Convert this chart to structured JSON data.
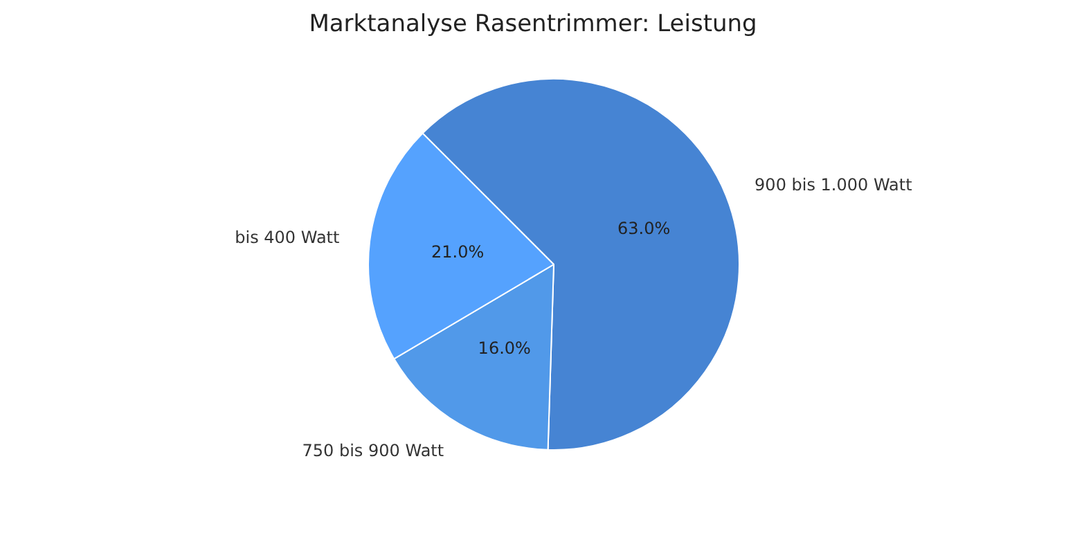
{
  "chart_data": {
    "type": "pie",
    "title": "Marktanalyse Rasentrimmer: Leistung",
    "categories": [
      "900 bis 1.000 Watt",
      "750 bis 900 Watt",
      "bis 400 Watt"
    ],
    "values": [
      63.0,
      16.0,
      21.0
    ],
    "value_labels": [
      "63.0%",
      "16.0%",
      "21.0%"
    ],
    "colors": [
      "#4684d3",
      "#5199e9",
      "#55a2fe"
    ],
    "legend": false
  }
}
